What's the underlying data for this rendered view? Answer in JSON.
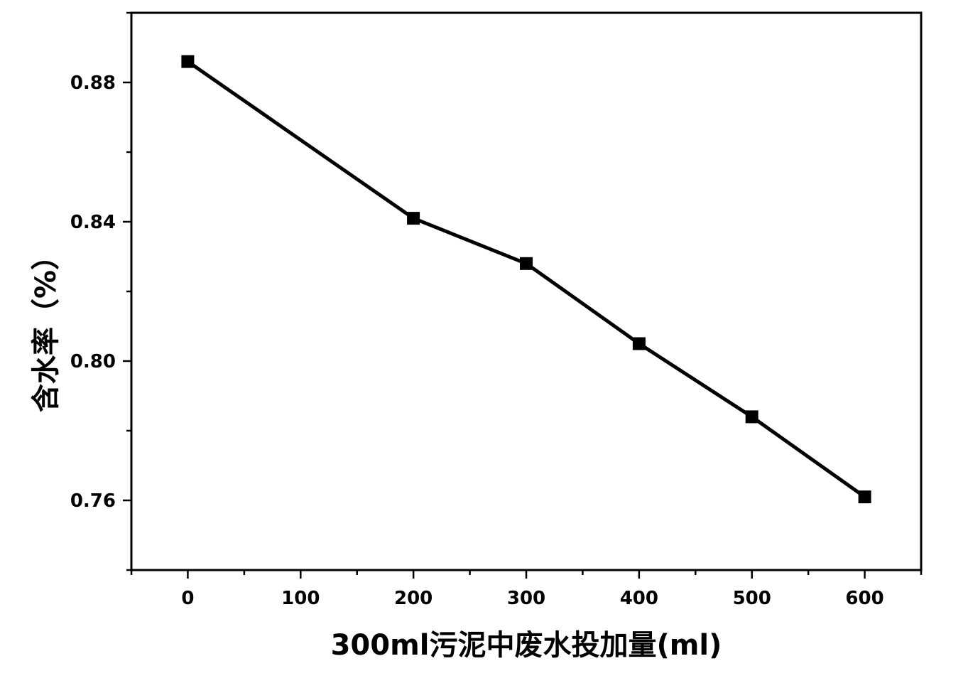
{
  "chart_data": {
    "type": "line",
    "title": "",
    "xlabel": "300ml污泥中废水投加量(ml)",
    "ylabel": "含水率（%）",
    "xlim": [
      -50,
      650
    ],
    "ylim": [
      0.74,
      0.9
    ],
    "x_ticks": [
      0,
      100,
      200,
      300,
      400,
      500,
      600
    ],
    "x_tick_labels": [
      "0",
      "100",
      "200",
      "300",
      "400",
      "500",
      "600"
    ],
    "y_ticks": [
      0.76,
      0.8,
      0.84,
      0.88
    ],
    "y_tick_labels": [
      "0.76",
      "0.80",
      "0.84",
      "0.88"
    ],
    "grid": false,
    "legend": "none",
    "marker": "square",
    "line_color": "#000000",
    "series": [
      {
        "x": [
          0,
          200,
          300,
          400,
          500,
          600
        ],
        "y": [
          0.886,
          0.841,
          0.828,
          0.805,
          0.784,
          0.761
        ]
      }
    ]
  }
}
